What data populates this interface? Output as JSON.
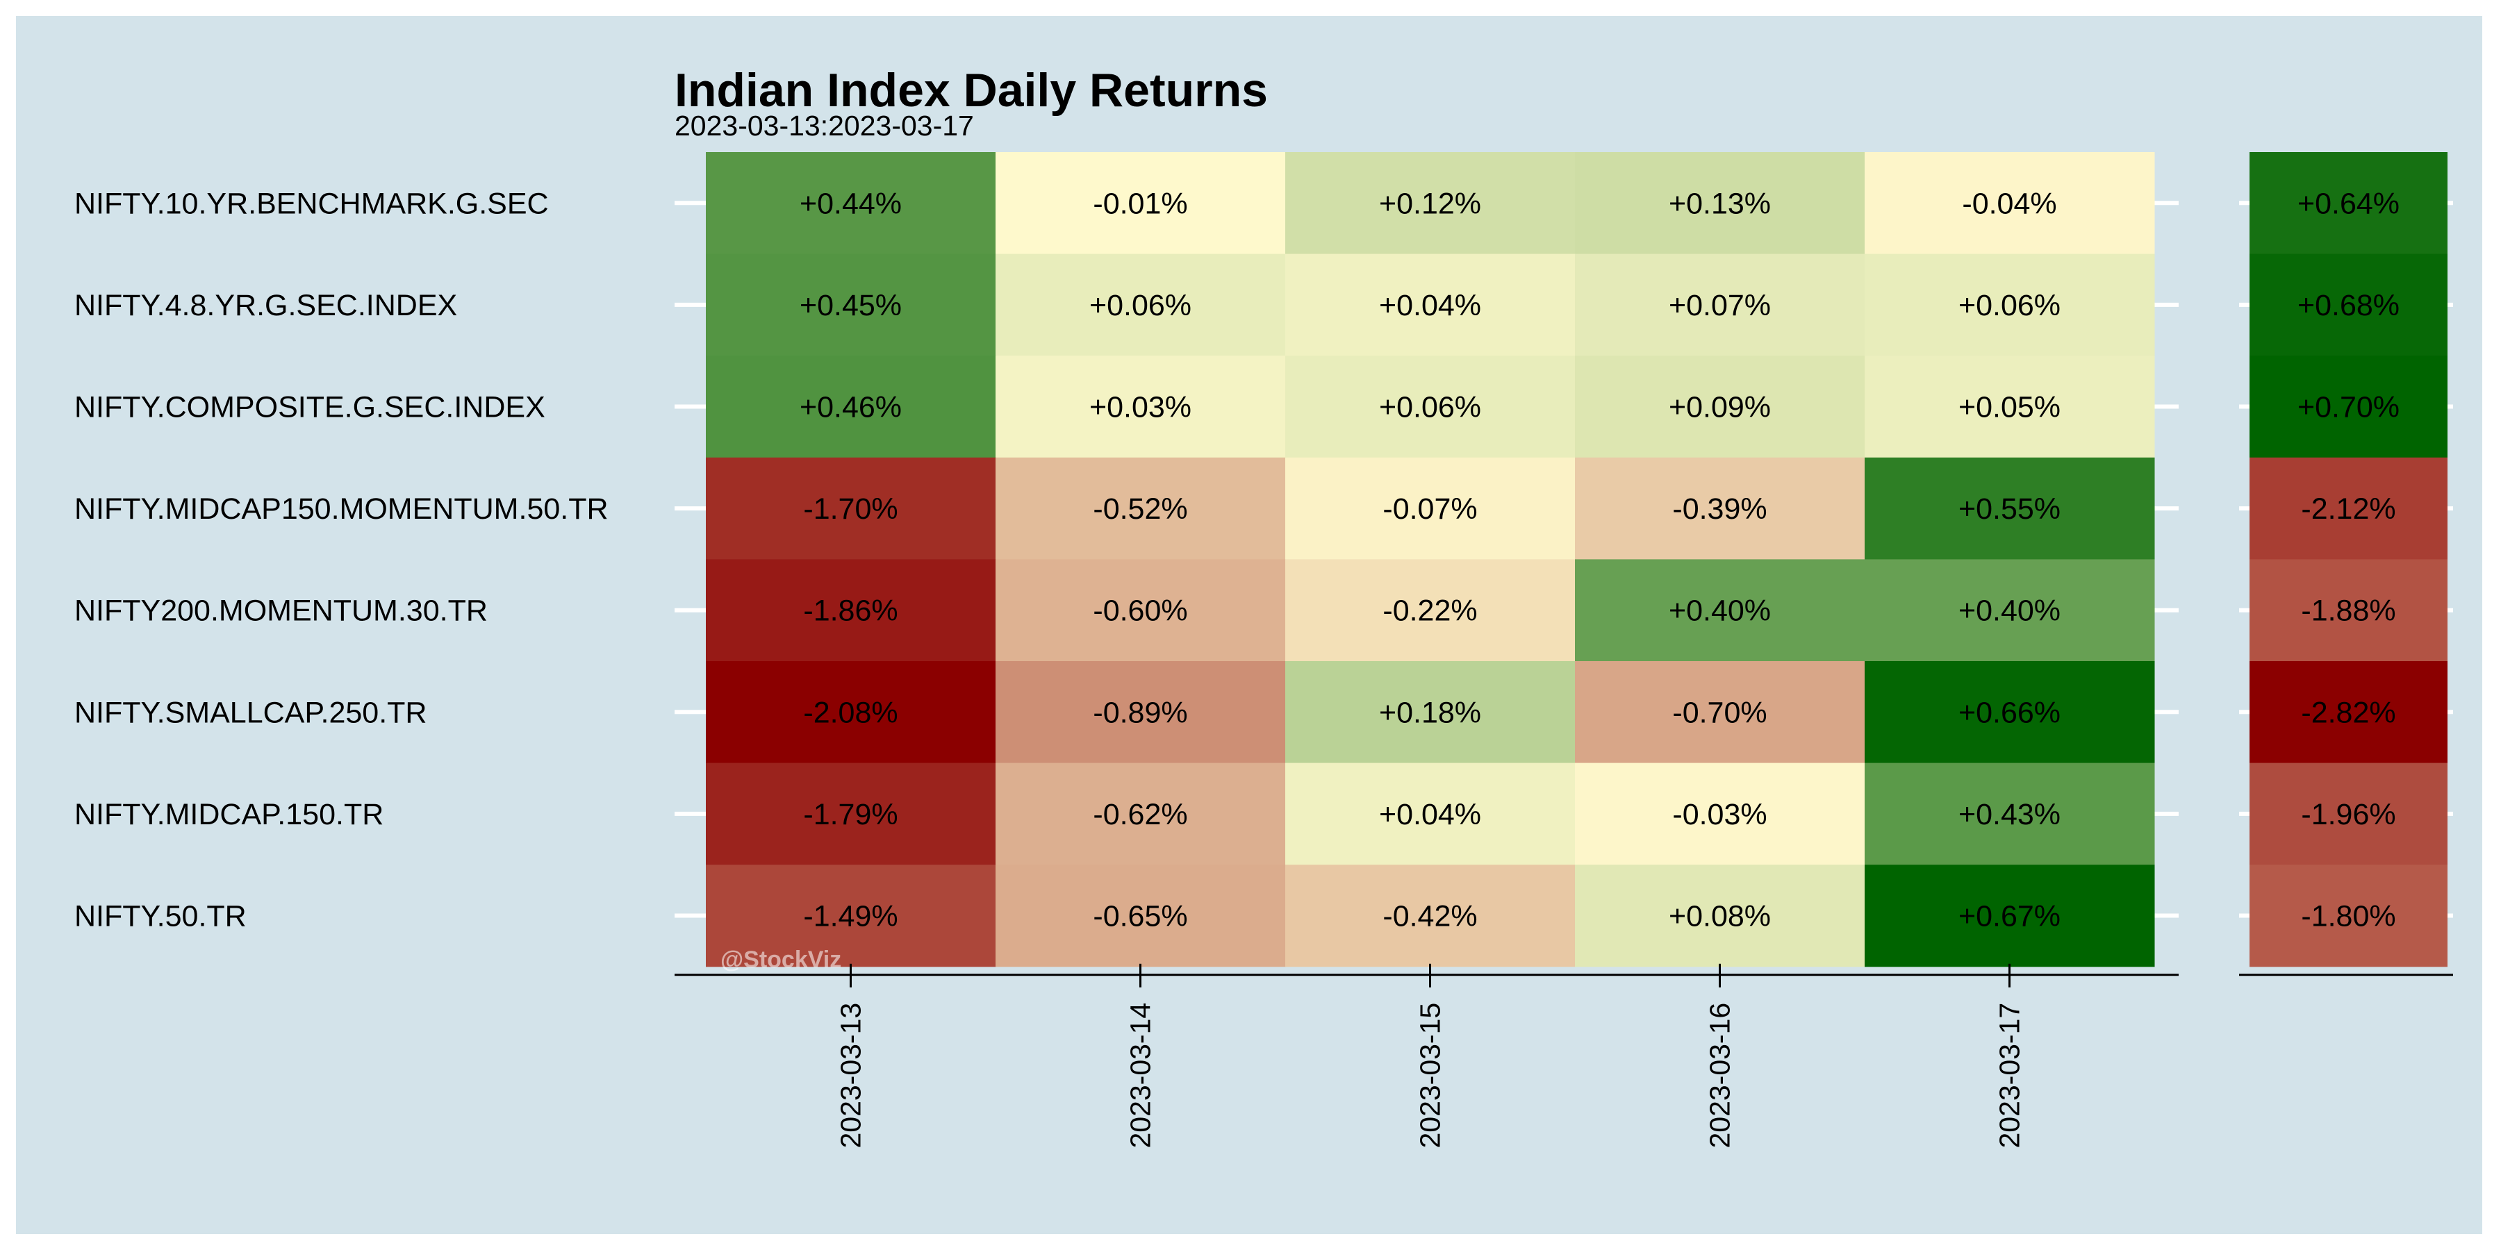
{
  "chart_data": {
    "type": "heatmap",
    "title": "Indian Index Daily Returns",
    "subtitle": "2023-03-13:2023-03-17",
    "watermark": "@StockViz",
    "columns": [
      "2023-03-13",
      "2023-03-14",
      "2023-03-15",
      "2023-03-16",
      "2023-03-17"
    ],
    "rows": [
      "NIFTY.10.YR.BENCHMARK.G.SEC",
      "NIFTY.4.8.YR.G.SEC.INDEX",
      "NIFTY.COMPOSITE.G.SEC.INDEX",
      "NIFTY.MIDCAP150.MOMENTUM.50.TR",
      "NIFTY200.MOMENTUM.30.TR",
      "NIFTY.SMALLCAP.250.TR",
      "NIFTY.MIDCAP.150.TR",
      "NIFTY.50.TR"
    ],
    "values": [
      [
        0.44,
        -0.01,
        0.12,
        0.13,
        -0.04
      ],
      [
        0.45,
        0.06,
        0.04,
        0.07,
        0.06
      ],
      [
        0.46,
        0.03,
        0.06,
        0.09,
        0.05
      ],
      [
        -1.7,
        -0.52,
        -0.07,
        -0.39,
        0.55
      ],
      [
        -1.86,
        -0.6,
        -0.22,
        0.4,
        0.4
      ],
      [
        -2.08,
        -0.89,
        0.18,
        -0.7,
        0.66
      ],
      [
        -1.79,
        -0.62,
        0.04,
        -0.03,
        0.43
      ],
      [
        -1.49,
        -0.65,
        -0.42,
        0.08,
        0.67
      ]
    ],
    "labels": [
      [
        "+0.44%",
        "-0.01%",
        "+0.12%",
        "+0.13%",
        "-0.04%"
      ],
      [
        "+0.45%",
        "+0.06%",
        "+0.04%",
        "+0.07%",
        "+0.06%"
      ],
      [
        "+0.46%",
        "+0.03%",
        "+0.06%",
        "+0.09%",
        "+0.05%"
      ],
      [
        "-1.70%",
        "-0.52%",
        "-0.07%",
        "-0.39%",
        "+0.55%"
      ],
      [
        "-1.86%",
        "-0.60%",
        "-0.22%",
        "+0.40%",
        "+0.40%"
      ],
      [
        "-2.08%",
        "-0.89%",
        "+0.18%",
        "-0.70%",
        "+0.66%"
      ],
      [
        "-1.79%",
        "-0.62%",
        "+0.04%",
        "-0.03%",
        "+0.43%"
      ],
      [
        "-1.49%",
        "-0.65%",
        "-0.42%",
        "+0.08%",
        "+0.67%"
      ]
    ],
    "totals": {
      "values": [
        0.64,
        0.68,
        0.7,
        -2.12,
        -1.88,
        -2.82,
        -1.96,
        -1.8
      ],
      "labels": [
        "+0.64%",
        "+0.68%",
        "+0.70%",
        "-2.12%",
        "-1.88%",
        "-2.82%",
        "-1.96%",
        "-1.80%"
      ]
    },
    "color_scale": {
      "low": "#8b0000",
      "mid": "#fffacd",
      "high": "#006400"
    },
    "colors": {
      "panel_background": "#d3e3ea",
      "grid": "#ffffff"
    }
  }
}
